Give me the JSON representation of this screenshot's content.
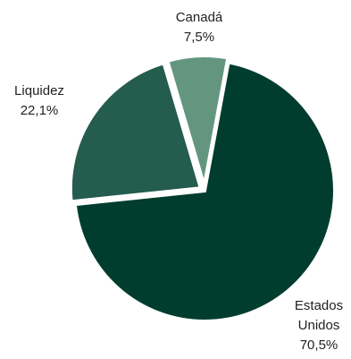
{
  "chart_data": {
    "type": "pie",
    "title": "",
    "slices": [
      {
        "label": "Estados Unidos",
        "value": 70.5,
        "value_label": "70,5%",
        "color": "#003d2f"
      },
      {
        "label": "Liquidez",
        "value": 22.1,
        "value_label": "22,1%",
        "color": "#245c4e"
      },
      {
        "label": "Canadá",
        "value": 7.5,
        "value_label": "7,5%",
        "color": "#64967f"
      }
    ],
    "label_lines": [
      [
        "Estados",
        "Unidos",
        "70,5%"
      ],
      [
        "Liquidez",
        "22,1%"
      ],
      [
        "Canadá",
        "7,5%"
      ]
    ],
    "separator_color": "#ffffff"
  }
}
